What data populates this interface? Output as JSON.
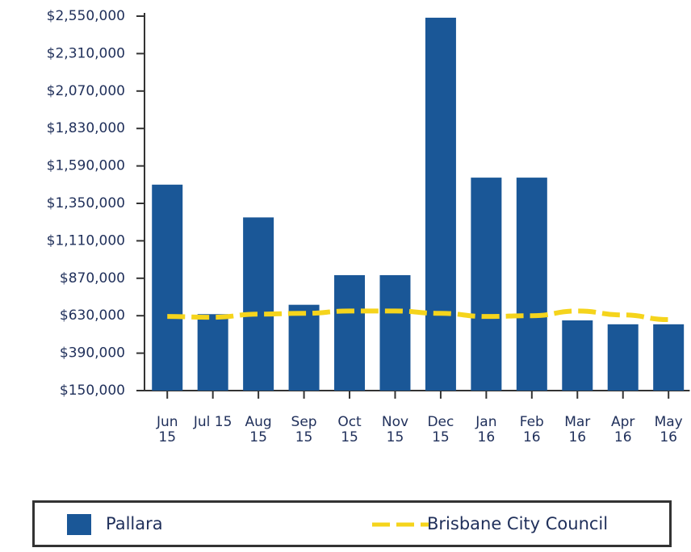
{
  "chart_data": {
    "type": "bar_line",
    "categories": [
      "Jun 15",
      "Jul 15",
      "Aug 15",
      "Sep 15",
      "Oct 15",
      "Nov 15",
      "Dec 15",
      "Jan 16",
      "Feb 16",
      "Mar 16",
      "Apr 16",
      "May 16"
    ],
    "series": [
      {
        "name": "Pallara",
        "type": "bar",
        "color": "#1a5797",
        "values": [
          1470000,
          640000,
          1260000,
          700000,
          890000,
          890000,
          2540000,
          1515000,
          1515000,
          600000,
          575000,
          575000
        ]
      },
      {
        "name": "Brisbane City Council",
        "type": "line",
        "color": "#f5d41c",
        "values": [
          625000,
          620000,
          640000,
          645000,
          660000,
          660000,
          645000,
          625000,
          630000,
          660000,
          635000,
          605000
        ]
      }
    ],
    "ylim": [
      150000,
      2550000
    ],
    "yticks": [
      {
        "value": 150000,
        "label": "$150,000"
      },
      {
        "value": 390000,
        "label": "$390,000"
      },
      {
        "value": 630000,
        "label": "$630,000"
      },
      {
        "value": 870000,
        "label": "$870,000"
      },
      {
        "value": 1110000,
        "label": "$1,110,000"
      },
      {
        "value": 1350000,
        "label": "$1,350,000"
      },
      {
        "value": 1590000,
        "label": "$1,590,000"
      },
      {
        "value": 1830000,
        "label": "$1,830,000"
      },
      {
        "value": 2070000,
        "label": "$2,070,000"
      },
      {
        "value": 2310000,
        "label": "$2,310,000"
      },
      {
        "value": 2550000,
        "label": "$2,550,000"
      }
    ],
    "legend": "bottom"
  }
}
